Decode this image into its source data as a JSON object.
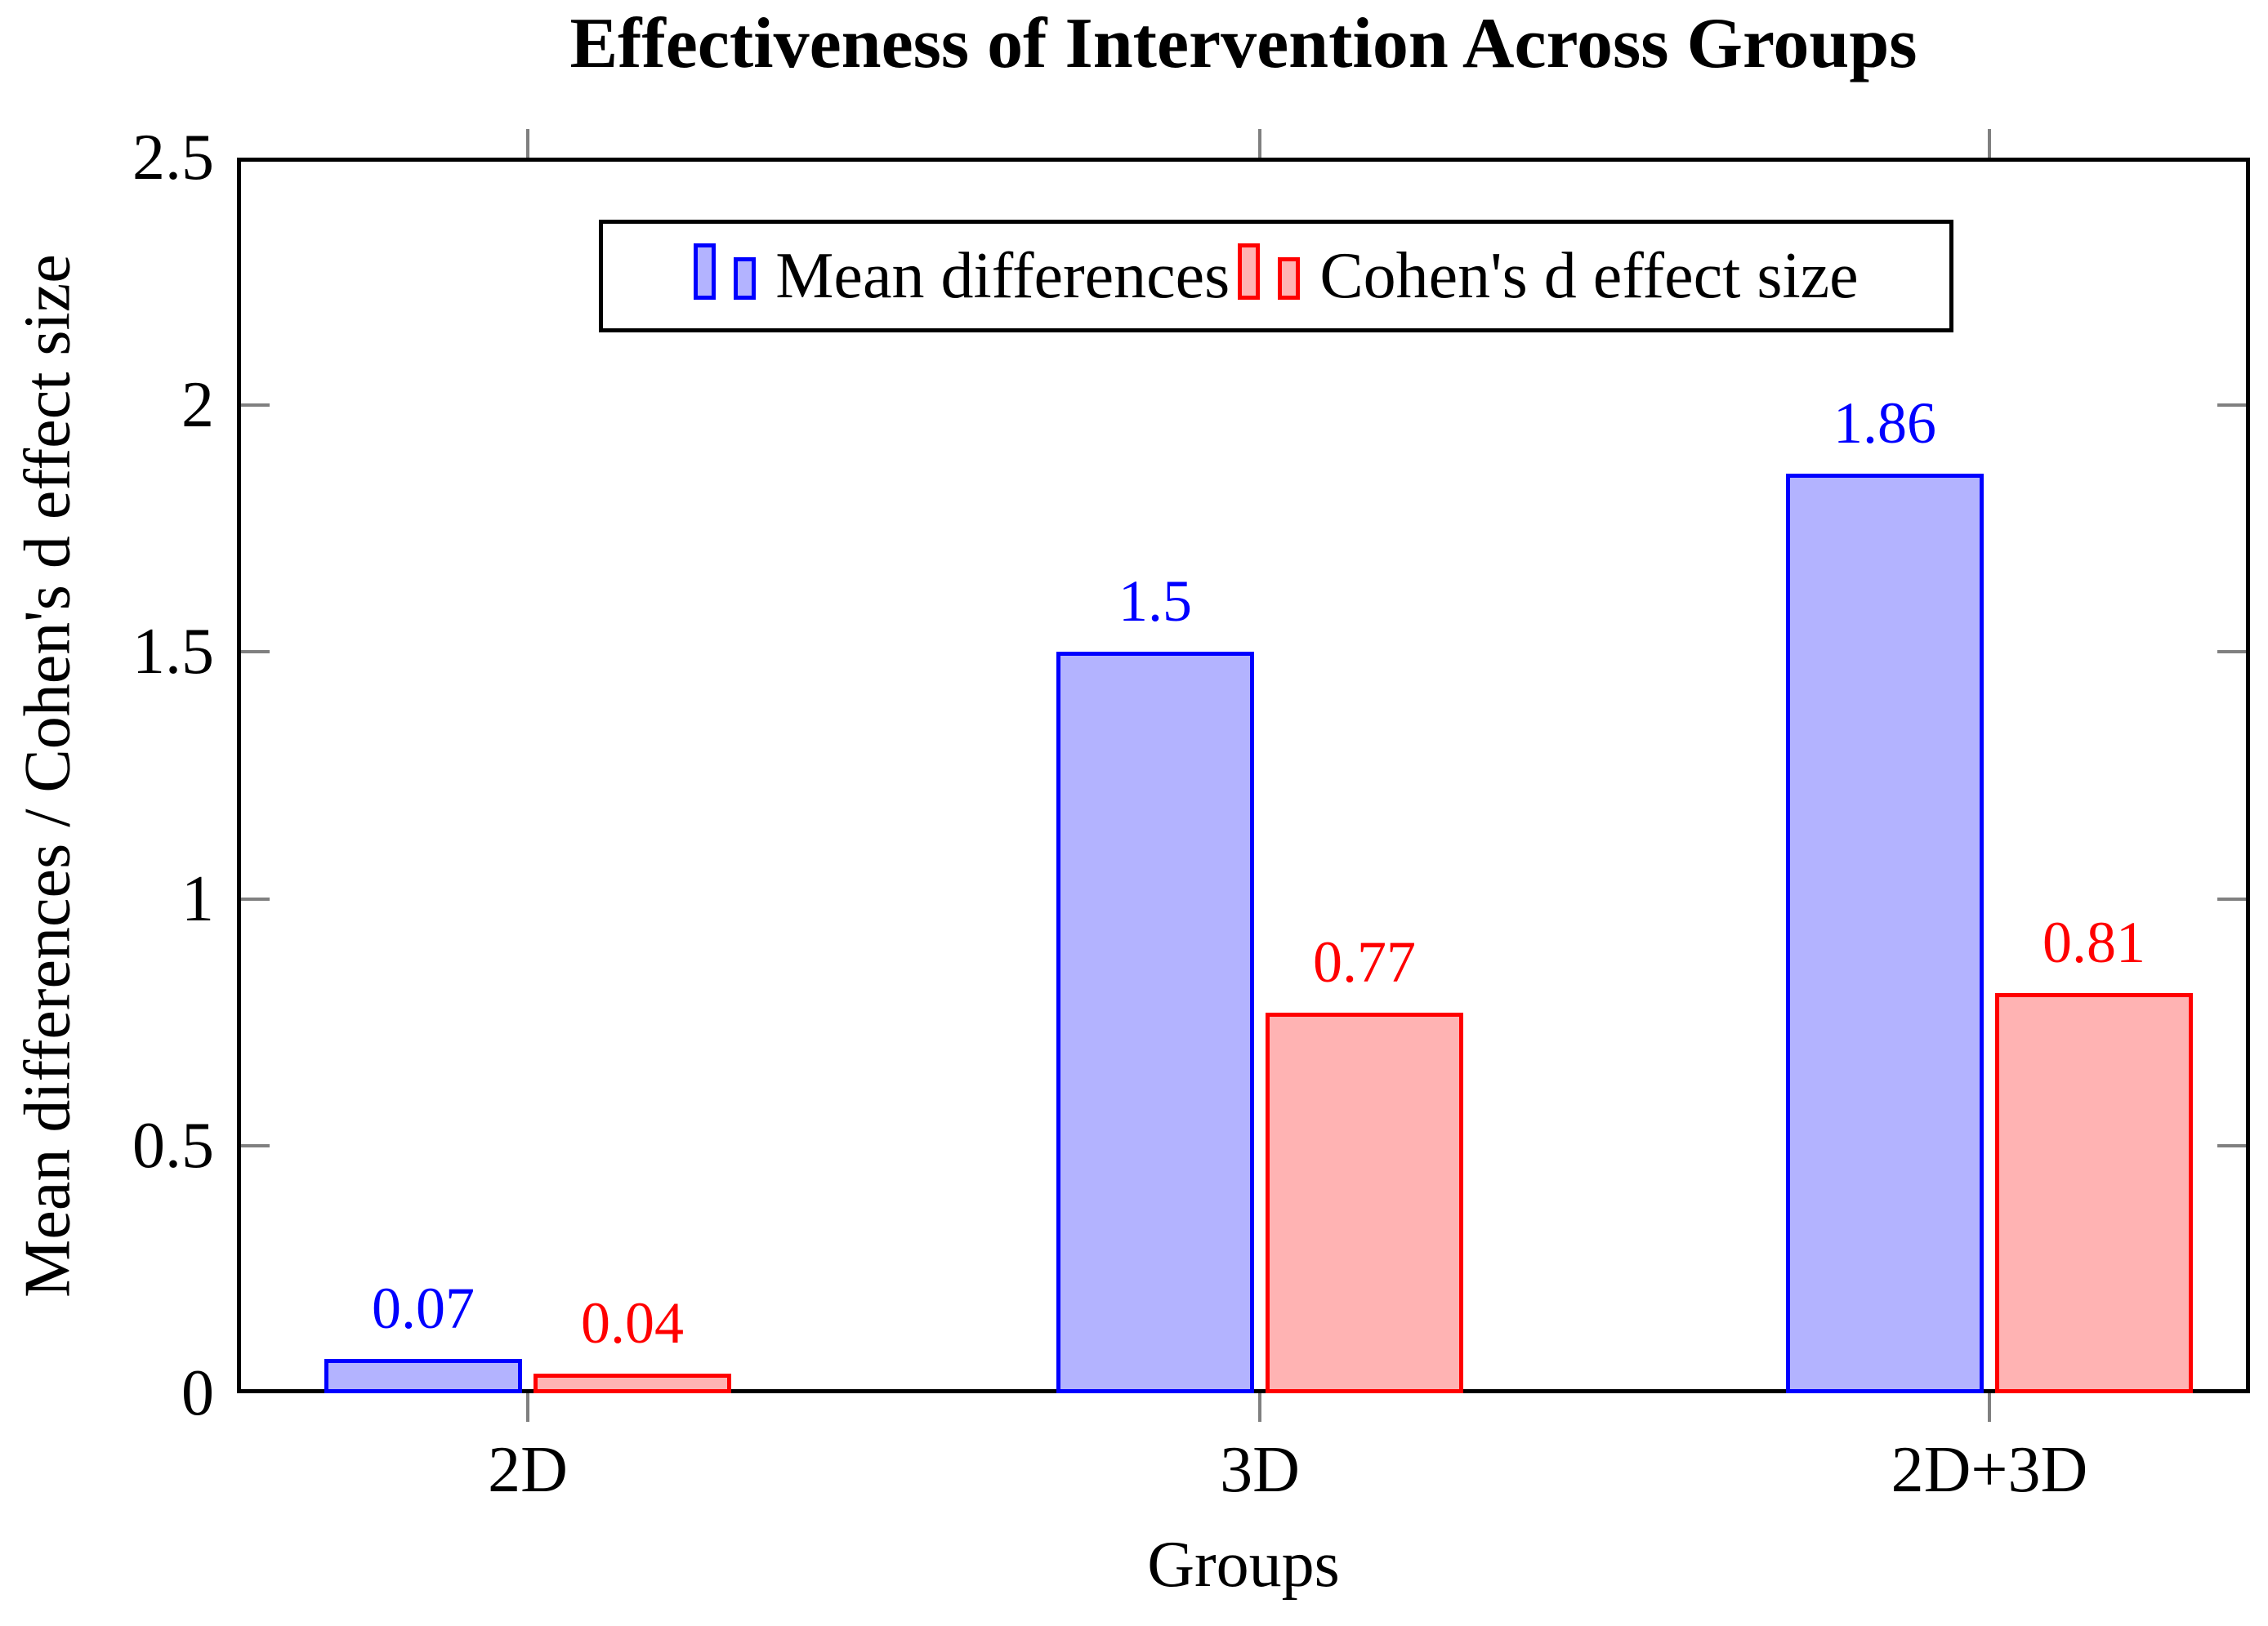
{
  "chart_data": {
    "type": "bar",
    "title": "Effectiveness of Intervention Across Groups",
    "xlabel": "Groups",
    "ylabel": "Mean differences / Cohen's d effect size",
    "categories": [
      "2D",
      "3D",
      "2D+3D"
    ],
    "series": [
      {
        "name": "Mean differences",
        "values": [
          0.07,
          1.5,
          1.86
        ],
        "value_labels": [
          "0.07",
          "1.5",
          "1.86"
        ],
        "stroke": "#0000ff",
        "fill": "#b3b3ff"
      },
      {
        "name": "Cohen's d effect size",
        "values": [
          0.04,
          0.77,
          0.81
        ],
        "value_labels": [
          "0.04",
          "0.77",
          "0.81"
        ],
        "stroke": "#ff0000",
        "fill": "#ffb3b3"
      }
    ],
    "ylim": [
      0,
      2.5
    ],
    "yticks": [
      {
        "v": 0,
        "label": "0"
      },
      {
        "v": 0.5,
        "label": "0.5"
      },
      {
        "v": 1,
        "label": "1"
      },
      {
        "v": 1.5,
        "label": "1.5"
      },
      {
        "v": 2,
        "label": "2"
      },
      {
        "v": 2.5,
        "label": "2.5"
      }
    ],
    "grid": false,
    "legend_position": "top-center",
    "axis_color": "#000000",
    "tick_color": "#808080",
    "background_color": "#ffffff"
  }
}
